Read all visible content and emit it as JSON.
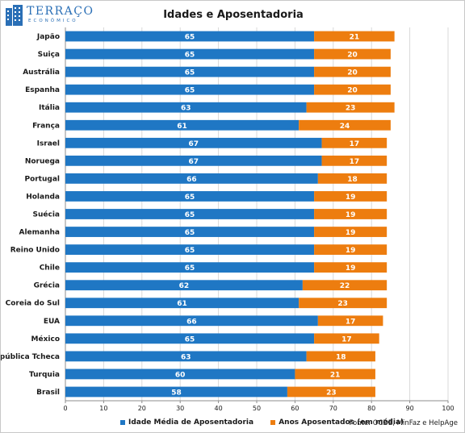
{
  "logo": {
    "text": "TERRAÇO",
    "subtext": "ECONÔMICO"
  },
  "chart_data": {
    "type": "bar",
    "orientation": "horizontal",
    "stacked": true,
    "title": "Idades e Aposentadoria",
    "categories": [
      "Japão",
      "Suiça",
      "Austrália",
      "Espanha",
      "Itália",
      "França",
      "Israel",
      "Noruega",
      "Portugal",
      "Holanda",
      "Suécia",
      "Alemanha",
      "Reino Unido",
      "Chile",
      "Grécia",
      "Coreia do Sul",
      "EUA",
      "México",
      "República Tcheca",
      "Turquia",
      "Brasil"
    ],
    "series": [
      {
        "name": "Idade Média de Aposentadoria",
        "color": "#1f77c4",
        "values": [
          65,
          65,
          65,
          65,
          63,
          61,
          67,
          67,
          66,
          65,
          65,
          65,
          65,
          65,
          62,
          61,
          66,
          65,
          63,
          60,
          58
        ]
      },
      {
        "name": "Anos Aposentados (em média)",
        "color": "#ed7d0f",
        "values": [
          21,
          20,
          20,
          20,
          23,
          24,
          17,
          17,
          18,
          19,
          19,
          19,
          19,
          19,
          22,
          23,
          17,
          17,
          18,
          21,
          23
        ]
      }
    ],
    "xlim": [
      0,
      100
    ],
    "xticks": [
      0,
      10,
      20,
      30,
      40,
      50,
      60,
      70,
      80,
      90,
      100
    ],
    "grid": true,
    "legend_position": "bottom"
  },
  "source": "Fonte: OCDE, MinFaz e HelpAge"
}
